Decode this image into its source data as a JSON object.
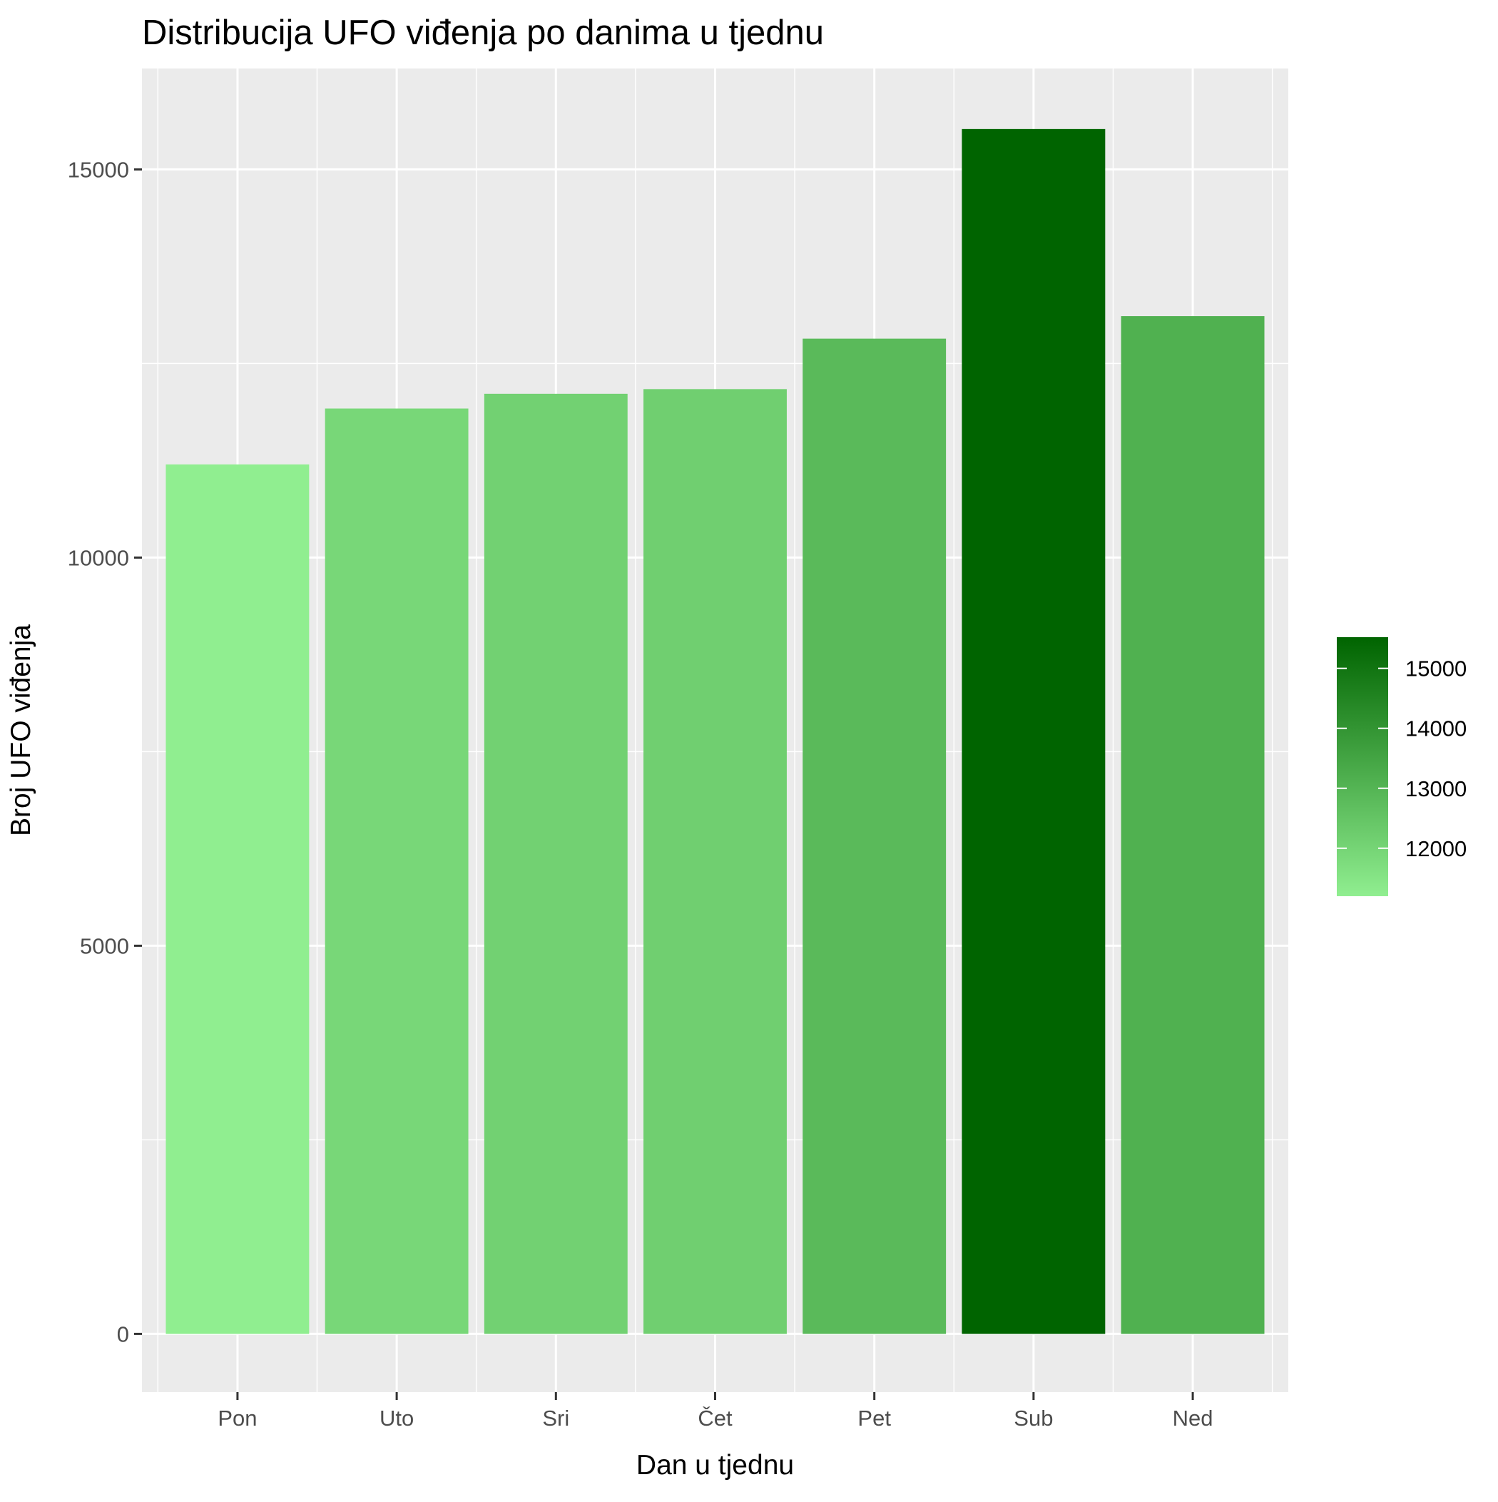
{
  "chart_data": {
    "type": "bar",
    "title": "Distribucija UFO viđenja po danima u tjednu",
    "xlabel": "Dan u tjednu",
    "ylabel": "Broj UFO viđenja",
    "categories": [
      "Pon",
      "Uto",
      "Sri",
      "Čet",
      "Pet",
      "Sub",
      "Ned"
    ],
    "values": [
      11200,
      11920,
      12110,
      12170,
      12820,
      15520,
      13110
    ],
    "ylim": [
      -750,
      16300
    ],
    "y_ticks": [
      0,
      5000,
      10000,
      15000
    ],
    "y_tick_labels": [
      "0",
      "5000",
      "10000",
      "15000"
    ],
    "grid": true,
    "legend": {
      "placement": "right",
      "type": "colorbar",
      "range": [
        11200,
        15520
      ],
      "ticks": [
        12000,
        13000,
        14000,
        15000
      ],
      "tick_labels": [
        "12000",
        "13000",
        "14000",
        "15000"
      ]
    },
    "colors": {
      "low": "#90EE90",
      "high": "#006400",
      "panel_background": "#EBEBEB",
      "grid": "#FFFFFF"
    }
  }
}
